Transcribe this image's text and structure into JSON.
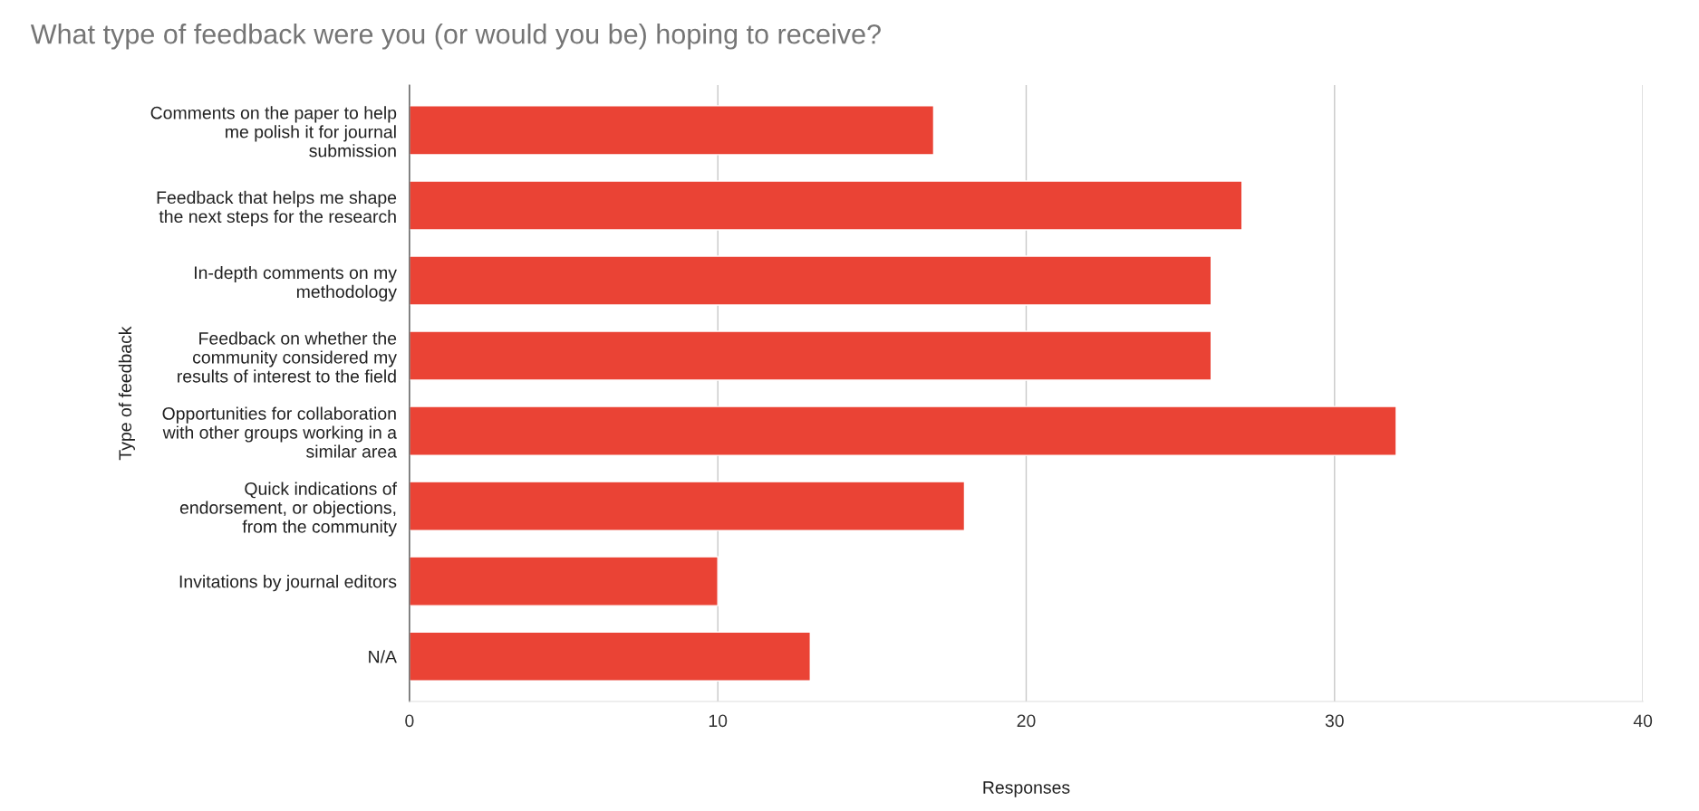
{
  "chart_data": {
    "type": "bar",
    "orientation": "horizontal",
    "title": "What type of feedback were you (or would you be) hoping to receive?",
    "xlabel": "Responses",
    "ylabel": "Type of feedback",
    "categories": [
      "Comments on the paper to help\nme polish it for journal\nsubmission",
      "Feedback that helps me shape\nthe next steps for the research",
      "In-depth comments on my\nmethodology",
      "Feedback on whether the\ncommunity considered my\nresults of interest to the field",
      "Opportunities for collaboration\nwith other groups working in a\nsimilar area",
      "Quick indications of\nendorsement, or objections,\nfrom the community",
      "Invitations by journal editors",
      "N/A"
    ],
    "values": [
      17,
      27,
      26,
      26,
      32,
      18,
      10,
      13
    ],
    "color": "#ea4335",
    "xlim": [
      0,
      40
    ],
    "xticks": [
      0,
      10,
      20,
      30,
      40
    ],
    "grid": "x",
    "legend": false
  }
}
